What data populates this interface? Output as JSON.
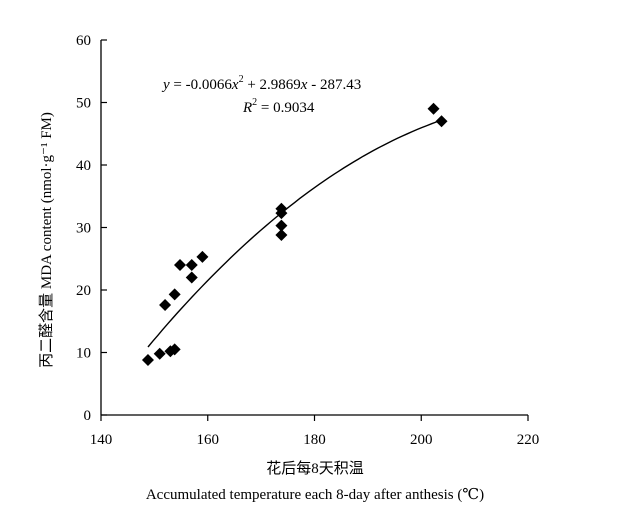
{
  "chart_data": {
    "type": "scatter",
    "title": "",
    "xlabel_cn": "花后每8天积温",
    "xlabel_en": "Accumulated temperature each 8-day after anthesis (℃)",
    "ylabel": "丙二醛含量 MDA content (nmol·g⁻¹ FM)",
    "xlim": [
      140,
      220
    ],
    "ylim": [
      0,
      60
    ],
    "xticks": [
      140,
      160,
      180,
      200,
      220
    ],
    "yticks": [
      0,
      10,
      20,
      30,
      40,
      50,
      60
    ],
    "grid": false,
    "series": [
      {
        "marker": "diamond",
        "color": "#000000",
        "points": [
          [
            148.8,
            8.8
          ],
          [
            151.0,
            9.8
          ],
          [
            153.0,
            10.2
          ],
          [
            153.8,
            10.5
          ],
          [
            152.0,
            17.6
          ],
          [
            153.8,
            19.3
          ],
          [
            154.8,
            24.0
          ],
          [
            157.0,
            24.0
          ],
          [
            157.0,
            22.0
          ],
          [
            159.0,
            25.3
          ],
          [
            173.8,
            33.0
          ],
          [
            173.8,
            32.3
          ],
          [
            173.8,
            30.3
          ],
          [
            173.8,
            28.8
          ],
          [
            202.3,
            49.0
          ],
          [
            203.8,
            47.0
          ]
        ]
      }
    ],
    "trendline": {
      "type": "polynomial",
      "coefficients": [
        -0.0066,
        2.9869,
        -287.43
      ],
      "x_range": [
        148.8,
        203.8
      ],
      "color": "#000000"
    },
    "equation": {
      "y_var": "y",
      "x_var": "x",
      "c1": " = -0.0066",
      "c2": " + 2.9869",
      "c3": " - 287.43",
      "exp": "2",
      "r_var": "R",
      "r_exp": "2",
      "r_value": " = 0.9034"
    }
  }
}
